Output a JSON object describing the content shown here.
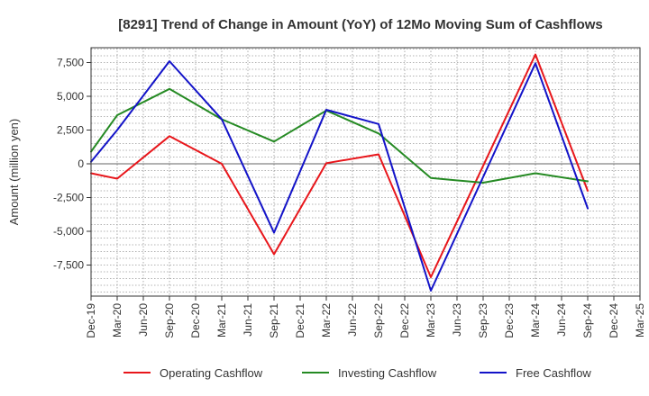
{
  "chart_data": {
    "type": "line",
    "title": "[8291]  Trend of Change in Amount (YoY) of 12Mo Moving Sum of Cashflows",
    "xlabel": "",
    "ylabel": "Amount (million yen)",
    "categories": [
      "Dec-19",
      "Mar-20",
      "Jun-20",
      "Sep-20",
      "Dec-20",
      "Mar-21",
      "Jun-21",
      "Sep-21",
      "Dec-21",
      "Mar-22",
      "Jun-22",
      "Sep-22",
      "Dec-22",
      "Mar-23",
      "Jun-23",
      "Sep-23",
      "Dec-23",
      "Mar-24",
      "Jun-24",
      "Sep-24",
      "Dec-24",
      "Mar-25"
    ],
    "ylim": [
      -9800,
      8600
    ],
    "yticks": [
      -7500,
      -5000,
      -2500,
      0,
      2500,
      5000,
      7500
    ],
    "ytick_labels": [
      "-7,500",
      "-5,000",
      "-2,500",
      "0",
      "2,500",
      "5,000",
      "7,500"
    ],
    "grid": true,
    "legend_position": "bottom",
    "series": [
      {
        "name": "Operating Cashflow",
        "color": "#e8161b",
        "values": [
          -700,
          -1100,
          null,
          2050,
          null,
          0,
          null,
          -6700,
          null,
          50,
          null,
          700,
          null,
          -8400,
          null,
          null,
          null,
          8100,
          null,
          -2000,
          null,
          null
        ]
      },
      {
        "name": "Investing Cashflow",
        "color": "#258a23",
        "values": [
          900,
          3600,
          null,
          5550,
          null,
          3300,
          null,
          1650,
          null,
          3950,
          null,
          2250,
          null,
          -1050,
          null,
          -1400,
          null,
          -700,
          null,
          -1300,
          null,
          null
        ]
      },
      {
        "name": "Free Cashflow",
        "color": "#1313c8",
        "values": [
          150,
          2500,
          null,
          7600,
          null,
          3300,
          null,
          -5100,
          null,
          4000,
          null,
          2950,
          null,
          -9400,
          null,
          null,
          null,
          7450,
          null,
          -3300,
          null,
          null
        ]
      }
    ]
  }
}
